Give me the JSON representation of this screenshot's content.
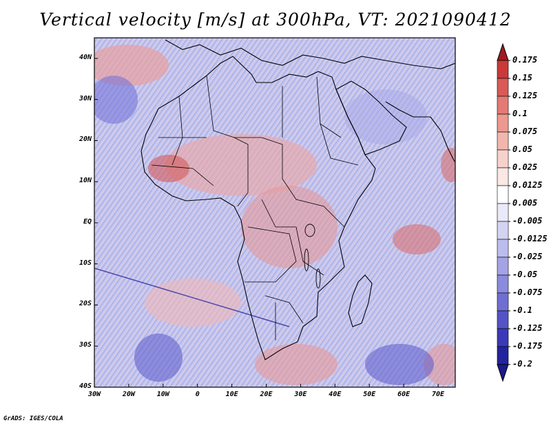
{
  "title": "Vertical velocity [m/s] at 300hPa, VT: 2021090412",
  "credit": "GrADS: IGES/COLA",
  "map": {
    "lon_range": [
      -30,
      75
    ],
    "lat_range": [
      -40,
      45
    ],
    "lat_labels": [
      "40N",
      "30N",
      "20N",
      "10N",
      "EQ",
      "10S",
      "20S",
      "30S",
      "40S"
    ],
    "lat_values": [
      40,
      30,
      20,
      10,
      0,
      -10,
      -20,
      -30,
      -40
    ],
    "lon_labels": [
      "30W",
      "20W",
      "10W",
      "0",
      "10E",
      "20E",
      "30E",
      "40E",
      "50E",
      "60E",
      "70E"
    ],
    "lon_values": [
      -30,
      -20,
      -10,
      0,
      10,
      20,
      30,
      40,
      50,
      60,
      70
    ]
  },
  "colorbar": {
    "labels": [
      "0.175",
      "0.15",
      "0.125",
      "0.1",
      "0.075",
      "0.05",
      "0.025",
      "0.0125",
      "0.005",
      "-0.005",
      "-0.0125",
      "-0.025",
      "-0.05",
      "-0.075",
      "-0.1",
      "-0.125",
      "-0.175",
      "-0.2"
    ],
    "colors": [
      "#b01f24",
      "#c9393a",
      "#d95a57",
      "#e47a73",
      "#ec9990",
      "#f2b6ad",
      "#f7d2cb",
      "#fbe7e3",
      "#ffffff",
      "#e9e9f9",
      "#d3d3f3",
      "#bcbcee",
      "#a3a3e6",
      "#8a8ade",
      "#6f6fd2",
      "#5454c6",
      "#3a3ab8",
      "#23239e"
    ],
    "top_color": "#a01a1e",
    "bottom_color": "#1a1a8c"
  }
}
